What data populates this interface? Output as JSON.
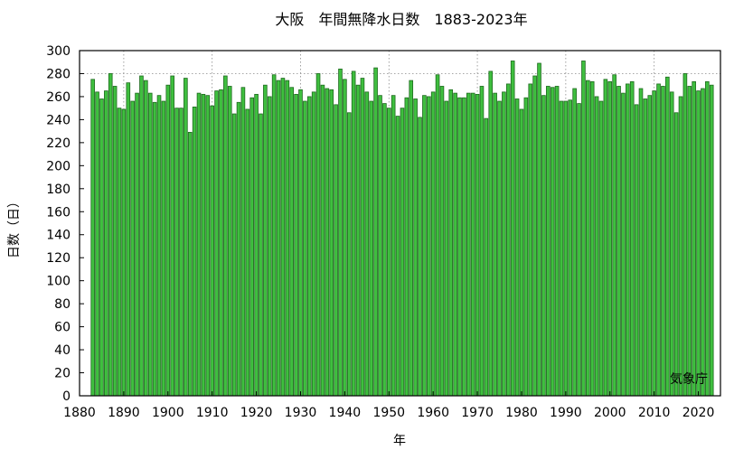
{
  "chart_data": {
    "type": "bar",
    "title": "大阪　年間無降水日数　1883-2023年",
    "xlabel": "年",
    "ylabel": "日数（日）",
    "source_note": "気象庁",
    "bar_color": "#3fbf3f",
    "bar_edge_color": "#1e6a1e",
    "grid": true,
    "xlim": [
      1880,
      2025
    ],
    "ylim": [
      0,
      300
    ],
    "x_ticks": [
      1880,
      1890,
      1900,
      1910,
      1920,
      1930,
      1940,
      1950,
      1960,
      1970,
      1980,
      1990,
      2000,
      2010,
      2020
    ],
    "y_ticks": [
      0,
      20,
      40,
      60,
      80,
      100,
      120,
      140,
      160,
      180,
      200,
      220,
      240,
      260,
      280,
      300
    ],
    "x_grid": [
      1890,
      1910,
      1930,
      1950,
      1970,
      1990,
      2010
    ],
    "y_grid": [
      280
    ],
    "x": [
      1883,
      1884,
      1885,
      1886,
      1887,
      1888,
      1889,
      1890,
      1891,
      1892,
      1893,
      1894,
      1895,
      1896,
      1897,
      1898,
      1899,
      1900,
      1901,
      1902,
      1903,
      1904,
      1905,
      1906,
      1907,
      1908,
      1909,
      1910,
      1911,
      1912,
      1913,
      1914,
      1915,
      1916,
      1917,
      1918,
      1919,
      1920,
      1921,
      1922,
      1923,
      1924,
      1925,
      1926,
      1927,
      1928,
      1929,
      1930,
      1931,
      1932,
      1933,
      1934,
      1935,
      1936,
      1937,
      1938,
      1939,
      1940,
      1941,
      1942,
      1943,
      1944,
      1945,
      1946,
      1947,
      1948,
      1949,
      1950,
      1951,
      1952,
      1953,
      1954,
      1955,
      1956,
      1957,
      1958,
      1959,
      1960,
      1961,
      1962,
      1963,
      1964,
      1965,
      1966,
      1967,
      1968,
      1969,
      1970,
      1971,
      1972,
      1973,
      1974,
      1975,
      1976,
      1977,
      1978,
      1979,
      1980,
      1981,
      1982,
      1983,
      1984,
      1985,
      1986,
      1987,
      1988,
      1989,
      1990,
      1991,
      1992,
      1993,
      1994,
      1995,
      1996,
      1997,
      1998,
      1999,
      2000,
      2001,
      2002,
      2003,
      2004,
      2005,
      2006,
      2007,
      2008,
      2009,
      2010,
      2011,
      2012,
      2013,
      2014,
      2015,
      2016,
      2017,
      2018,
      2019,
      2020,
      2021,
      2022,
      2023
    ],
    "values": [
      275,
      264,
      258,
      265,
      280,
      269,
      250,
      249,
      272,
      256,
      263,
      278,
      274,
      263,
      255,
      261,
      256,
      270,
      278,
      250,
      250,
      276,
      229,
      251,
      263,
      262,
      261,
      252,
      265,
      266,
      278,
      269,
      245,
      255,
      268,
      249,
      259,
      262,
      245,
      270,
      260,
      279,
      274,
      276,
      274,
      268,
      262,
      266,
      256,
      260,
      264,
      280,
      270,
      267,
      266,
      253,
      284,
      275,
      246,
      282,
      270,
      276,
      264,
      256,
      285,
      261,
      254,
      250,
      261,
      243,
      250,
      259,
      274,
      258,
      242,
      261,
      260,
      264,
      279,
      269,
      256,
      266,
      263,
      259,
      259,
      263,
      263,
      262,
      269,
      241,
      282,
      263,
      256,
      264,
      271,
      291,
      258,
      249,
      259,
      271,
      278,
      289,
      261,
      269,
      268,
      269,
      256,
      256,
      257,
      267,
      254,
      291,
      274,
      273,
      260,
      256,
      275,
      273,
      279,
      269,
      263,
      271,
      273,
      253,
      267,
      258,
      261,
      265,
      271,
      269,
      277,
      264,
      246,
      260,
      280,
      269,
      273,
      265,
      267,
      273,
      270
    ]
  }
}
